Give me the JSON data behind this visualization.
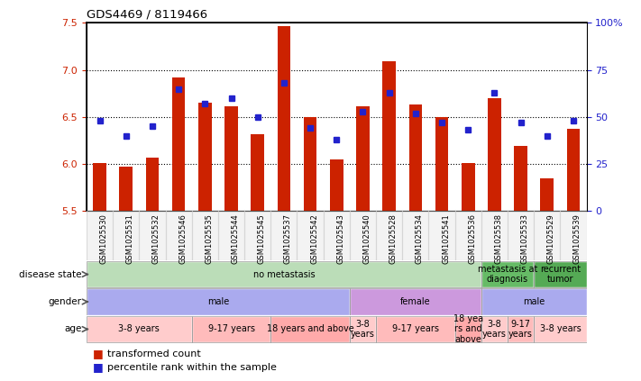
{
  "title": "GDS4469 / 8119466",
  "samples": [
    "GSM1025530",
    "GSM1025531",
    "GSM1025532",
    "GSM1025546",
    "GSM1025535",
    "GSM1025544",
    "GSM1025545",
    "GSM1025537",
    "GSM1025542",
    "GSM1025543",
    "GSM1025540",
    "GSM1025528",
    "GSM1025534",
    "GSM1025541",
    "GSM1025536",
    "GSM1025538",
    "GSM1025533",
    "GSM1025529",
    "GSM1025539"
  ],
  "bar_values": [
    6.01,
    5.97,
    6.07,
    6.92,
    6.65,
    6.61,
    6.32,
    7.47,
    6.5,
    6.05,
    6.61,
    7.09,
    6.63,
    6.5,
    6.01,
    6.7,
    6.19,
    5.85,
    6.37
  ],
  "dot_values": [
    48,
    40,
    45,
    65,
    57,
    60,
    50,
    68,
    44,
    38,
    53,
    63,
    52,
    47,
    43,
    63,
    47,
    40,
    48
  ],
  "ylim_left": [
    5.5,
    7.5
  ],
  "ylim_right": [
    0,
    100
  ],
  "yticks_left": [
    5.5,
    6.0,
    6.5,
    7.0,
    7.5
  ],
  "yticks_right": [
    0,
    25,
    50,
    75,
    100
  ],
  "ytick_labels_right": [
    "0",
    "25",
    "50",
    "75",
    "100%"
  ],
  "bar_color": "#cc2200",
  "dot_color": "#2222cc",
  "bg_color": "#ffffff",
  "disease_state_groups": [
    {
      "label": "no metastasis",
      "start": 0,
      "end": 15,
      "color": "#bbddb8"
    },
    {
      "label": "metastasis at\ndiagnosis",
      "start": 15,
      "end": 17,
      "color": "#66bb66"
    },
    {
      "label": "recurrent\ntumor",
      "start": 17,
      "end": 19,
      "color": "#55aa55"
    }
  ],
  "gender_groups": [
    {
      "label": "male",
      "start": 0,
      "end": 10,
      "color": "#aaaaee"
    },
    {
      "label": "female",
      "start": 10,
      "end": 15,
      "color": "#cc99dd"
    },
    {
      "label": "male",
      "start": 15,
      "end": 19,
      "color": "#aaaaee"
    }
  ],
  "age_groups": [
    {
      "label": "3-8 years",
      "start": 0,
      "end": 4,
      "color": "#ffcccc"
    },
    {
      "label": "9-17 years",
      "start": 4,
      "end": 7,
      "color": "#ffbbbb"
    },
    {
      "label": "18 years and above",
      "start": 7,
      "end": 10,
      "color": "#ffaaaa"
    },
    {
      "label": "3-8\nyears",
      "start": 10,
      "end": 11,
      "color": "#ffcccc"
    },
    {
      "label": "9-17 years",
      "start": 11,
      "end": 14,
      "color": "#ffbbbb"
    },
    {
      "label": "18 yea\nrs and\nabove",
      "start": 14,
      "end": 15,
      "color": "#ffaaaa"
    },
    {
      "label": "3-8\nyears",
      "start": 15,
      "end": 16,
      "color": "#ffcccc"
    },
    {
      "label": "9-17\nyears",
      "start": 16,
      "end": 17,
      "color": "#ffbbbb"
    },
    {
      "label": "3-8 years",
      "start": 17,
      "end": 19,
      "color": "#ffcccc"
    }
  ],
  "row_labels": [
    "disease state",
    "gender",
    "age"
  ],
  "legend_items": [
    {
      "label": "transformed count",
      "color": "#cc2200"
    },
    {
      "label": "percentile rank within the sample",
      "color": "#2222cc"
    }
  ]
}
